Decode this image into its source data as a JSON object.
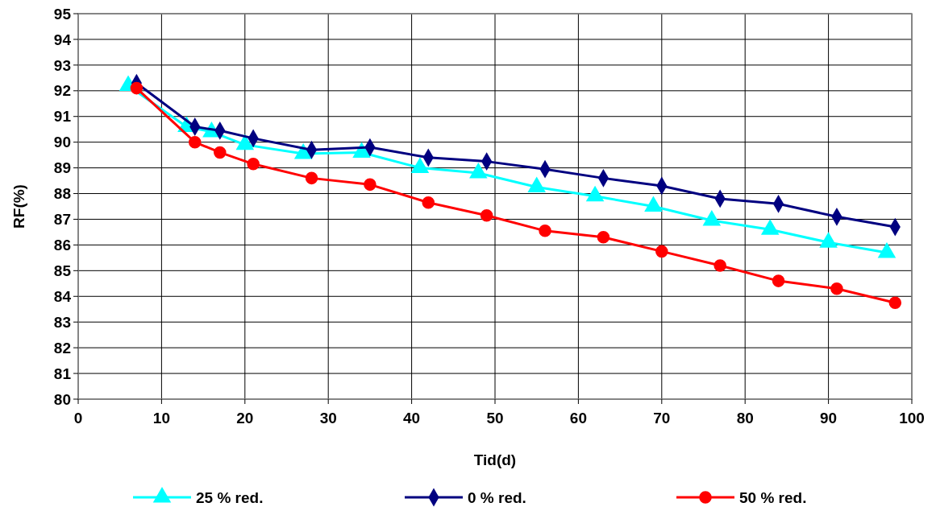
{
  "chart_data": {
    "type": "line",
    "xlabel": "Tid(d)",
    "ylabel": "RF(%)",
    "xlim": [
      0,
      100
    ],
    "xticks": [
      0,
      10,
      20,
      30,
      40,
      50,
      60,
      70,
      80,
      90,
      100
    ],
    "ylim": [
      80,
      95
    ],
    "yticks": [
      80,
      81,
      82,
      83,
      84,
      85,
      86,
      87,
      88,
      89,
      90,
      91,
      92,
      93,
      94,
      95
    ],
    "grid": true,
    "legend": "bottom",
    "line_style": "solid",
    "series": [
      {
        "name": "25 % red.",
        "color": "#00ffff",
        "marker": "triangle",
        "x": [
          6,
          13,
          16,
          20,
          27,
          34,
          41,
          48,
          55,
          62,
          69,
          76,
          83,
          90,
          97
        ],
        "values": [
          92.2,
          90.6,
          90.4,
          89.9,
          89.55,
          89.6,
          89.0,
          88.8,
          88.25,
          87.9,
          87.5,
          86.95,
          86.6,
          86.1,
          85.7
        ]
      },
      {
        "name": "0 % red.",
        "color": "#000080",
        "marker": "diamond",
        "x": [
          7,
          14,
          17,
          21,
          28,
          35,
          42,
          49,
          56,
          63,
          70,
          77,
          84,
          91,
          98
        ],
        "values": [
          92.3,
          90.6,
          90.45,
          90.15,
          89.7,
          89.8,
          89.4,
          89.25,
          88.95,
          88.6,
          88.3,
          87.8,
          87.6,
          87.1,
          86.7
        ]
      },
      {
        "name": "50 % red.",
        "color": "#ff0000",
        "marker": "circle",
        "x": [
          7,
          14,
          17,
          21,
          28,
          35,
          42,
          49,
          56,
          63,
          70,
          77,
          84,
          91,
          98
        ],
        "values": [
          92.1,
          90.0,
          89.6,
          89.15,
          88.6,
          88.35,
          87.65,
          87.15,
          86.55,
          86.3,
          85.75,
          85.2,
          84.6,
          84.3,
          83.75
        ]
      }
    ]
  }
}
